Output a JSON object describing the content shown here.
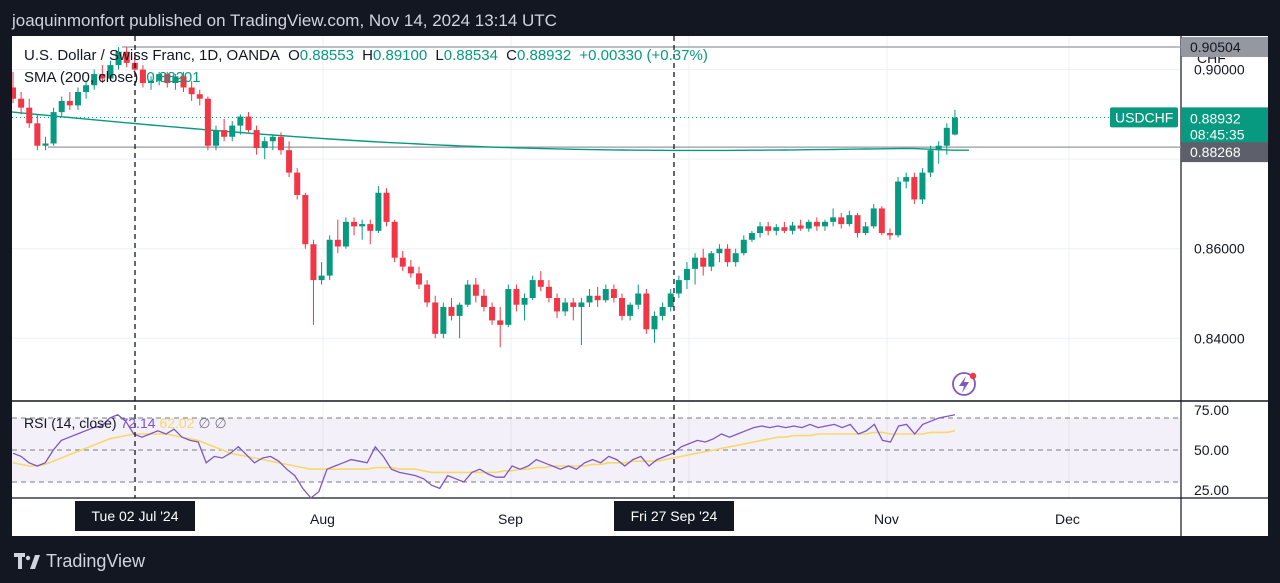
{
  "header": {
    "caption": "joaquinmonfort published on TradingView.com, Nov 14, 2024 13:14 UTC"
  },
  "legend": {
    "title": "U.S. Dollar / Swiss Franc, 1D, OANDA",
    "o_label": "O",
    "o_value": "0.88553",
    "h_label": "H",
    "h_value": "0.89100",
    "l_label": "L",
    "l_value": "0.88534",
    "c_label": "C",
    "c_value": "0.88932",
    "change": "+0.00330 (+0.37%)",
    "sma_label": "SMA (200, close)",
    "sma_value": "0.88201"
  },
  "rsi_legend": {
    "label": "RSI (14, close)",
    "value1": "72.14",
    "value2": "62.02",
    "symbols": "∅ ∅"
  },
  "currency": "CHF",
  "footer": {
    "brand": "TradingView"
  },
  "colors": {
    "up": "#089981",
    "down": "#f23645",
    "sma": "#089981",
    "rsi": "#7e57c2",
    "rsi_ma": "#f7d96a",
    "background": "#ffffff",
    "frame": "#131722"
  },
  "icons": [
    "lightning-icon",
    "tradingview-logo-icon"
  ],
  "chart_data": [
    {
      "type": "candlestick",
      "symbol": "USDCHF",
      "timeframe": "1D",
      "ylim": [
        0.826,
        0.9075
      ],
      "y_ticks": [
        "0.84000",
        "0.86000",
        "0.90000"
      ],
      "price_labels": [
        {
          "text": "0.90504",
          "value": 0.90504,
          "style": "gray"
        },
        {
          "text": "0.88932",
          "value": 0.88932,
          "style": "green",
          "tag": "USDCHF",
          "countdown": "08:45:35"
        },
        {
          "text": "0.88268",
          "value": 0.88268,
          "style": "dark"
        }
      ],
      "horizontal_lines": [
        0.90504,
        0.88268
      ],
      "x_labels": [
        "Aug",
        "Sep",
        "Nov",
        "Dec"
      ],
      "crosshair_labels": [
        "Tue 02 Jul '24",
        "Fri 27 Sep '24"
      ],
      "candles": [
        [
          0.896,
          0.8995,
          0.8925,
          0.8935
        ],
        [
          0.8935,
          0.895,
          0.89,
          0.8915
        ],
        [
          0.8915,
          0.8935,
          0.887,
          0.888
        ],
        [
          0.888,
          0.89,
          0.882,
          0.883
        ],
        [
          0.883,
          0.885,
          0.882,
          0.8835
        ],
        [
          0.8835,
          0.8915,
          0.883,
          0.8905
        ],
        [
          0.8905,
          0.894,
          0.8895,
          0.893
        ],
        [
          0.893,
          0.895,
          0.891,
          0.892
        ],
        [
          0.892,
          0.896,
          0.891,
          0.895
        ],
        [
          0.895,
          0.8975,
          0.8935,
          0.8965
        ],
        [
          0.8965,
          0.9,
          0.8955,
          0.899
        ],
        [
          0.899,
          0.901,
          0.897,
          0.898
        ],
        [
          0.898,
          0.902,
          0.8975,
          0.901
        ],
        [
          0.901,
          0.905,
          0.9,
          0.904
        ],
        [
          0.904,
          0.905,
          0.9005,
          0.9015
        ],
        [
          0.9015,
          0.903,
          0.899,
          0.9
        ],
        [
          0.9,
          0.901,
          0.896,
          0.897
        ],
        [
          0.897,
          0.8985,
          0.8955,
          0.8975
        ],
        [
          0.8975,
          0.8995,
          0.8965,
          0.899
        ],
        [
          0.899,
          0.8995,
          0.896,
          0.897
        ],
        [
          0.897,
          0.899,
          0.8955,
          0.8985
        ],
        [
          0.8985,
          0.8995,
          0.895,
          0.896
        ],
        [
          0.896,
          0.8975,
          0.893,
          0.8945
        ],
        [
          0.8945,
          0.8955,
          0.892,
          0.8935
        ],
        [
          0.8935,
          0.894,
          0.882,
          0.883
        ],
        [
          0.883,
          0.8875,
          0.882,
          0.8865
        ],
        [
          0.8865,
          0.889,
          0.884,
          0.885
        ],
        [
          0.885,
          0.8885,
          0.884,
          0.8875
        ],
        [
          0.8875,
          0.89,
          0.8855,
          0.8895
        ],
        [
          0.8895,
          0.8905,
          0.886,
          0.8865
        ],
        [
          0.8865,
          0.8875,
          0.881,
          0.8825
        ],
        [
          0.8825,
          0.885,
          0.88,
          0.884
        ],
        [
          0.884,
          0.8855,
          0.882,
          0.885
        ],
        [
          0.885,
          0.886,
          0.881,
          0.882
        ],
        [
          0.882,
          0.884,
          0.876,
          0.877
        ],
        [
          0.877,
          0.878,
          0.871,
          0.872
        ],
        [
          0.872,
          0.8725,
          0.86,
          0.861
        ],
        [
          0.861,
          0.862,
          0.843,
          0.853
        ],
        [
          0.853,
          0.857,
          0.852,
          0.854
        ],
        [
          0.854,
          0.863,
          0.853,
          0.862
        ],
        [
          0.862,
          0.8665,
          0.859,
          0.8605
        ],
        [
          0.8605,
          0.867,
          0.86,
          0.866
        ],
        [
          0.866,
          0.867,
          0.863,
          0.865
        ],
        [
          0.865,
          0.8665,
          0.862,
          0.8655
        ],
        [
          0.8655,
          0.8665,
          0.861,
          0.864
        ],
        [
          0.864,
          0.874,
          0.8635,
          0.8725
        ],
        [
          0.8725,
          0.8735,
          0.865,
          0.866
        ],
        [
          0.866,
          0.8665,
          0.857,
          0.858
        ],
        [
          0.858,
          0.8595,
          0.855,
          0.856
        ],
        [
          0.856,
          0.8575,
          0.8535,
          0.8545
        ],
        [
          0.8545,
          0.856,
          0.851,
          0.852
        ],
        [
          0.852,
          0.853,
          0.847,
          0.848
        ],
        [
          0.848,
          0.8495,
          0.84,
          0.841
        ],
        [
          0.841,
          0.848,
          0.84,
          0.847
        ],
        [
          0.847,
          0.849,
          0.844,
          0.845
        ],
        [
          0.845,
          0.848,
          0.84,
          0.8475
        ],
        [
          0.8475,
          0.853,
          0.847,
          0.852
        ],
        [
          0.852,
          0.8535,
          0.848,
          0.8495
        ],
        [
          0.8495,
          0.851,
          0.846,
          0.847
        ],
        [
          0.847,
          0.848,
          0.843,
          0.844
        ],
        [
          0.844,
          0.847,
          0.838,
          0.843
        ],
        [
          0.843,
          0.852,
          0.8425,
          0.851
        ],
        [
          0.851,
          0.852,
          0.846,
          0.8475
        ],
        [
          0.8475,
          0.85,
          0.844,
          0.849
        ],
        [
          0.849,
          0.854,
          0.8485,
          0.853
        ],
        [
          0.853,
          0.855,
          0.8505,
          0.8515
        ],
        [
          0.8515,
          0.853,
          0.848,
          0.849
        ],
        [
          0.849,
          0.85,
          0.8445,
          0.846
        ],
        [
          0.846,
          0.849,
          0.845,
          0.848
        ],
        [
          0.848,
          0.849,
          0.844,
          0.847
        ],
        [
          0.847,
          0.849,
          0.8385,
          0.848
        ],
        [
          0.848,
          0.851,
          0.847,
          0.8495
        ],
        [
          0.8495,
          0.8515,
          0.847,
          0.8485
        ],
        [
          0.8485,
          0.852,
          0.848,
          0.851
        ],
        [
          0.851,
          0.852,
          0.848,
          0.849
        ],
        [
          0.849,
          0.85,
          0.844,
          0.845
        ],
        [
          0.845,
          0.848,
          0.844,
          0.8475
        ],
        [
          0.8475,
          0.852,
          0.8465,
          0.85
        ],
        [
          0.85,
          0.851,
          0.841,
          0.842
        ],
        [
          0.842,
          0.846,
          0.839,
          0.845
        ],
        [
          0.845,
          0.848,
          0.844,
          0.847
        ],
        [
          0.847,
          0.851,
          0.846,
          0.85
        ],
        [
          0.85,
          0.854,
          0.849,
          0.853
        ],
        [
          0.853,
          0.857,
          0.851,
          0.8555
        ],
        [
          0.8555,
          0.859,
          0.852,
          0.858
        ],
        [
          0.858,
          0.86,
          0.854,
          0.856
        ],
        [
          0.856,
          0.8595,
          0.855,
          0.859
        ],
        [
          0.859,
          0.861,
          0.857,
          0.86
        ],
        [
          0.86,
          0.861,
          0.856,
          0.857
        ],
        [
          0.857,
          0.86,
          0.856,
          0.859
        ],
        [
          0.859,
          0.863,
          0.8585,
          0.862
        ],
        [
          0.862,
          0.864,
          0.8615,
          0.8635
        ],
        [
          0.8635,
          0.866,
          0.8625,
          0.865
        ],
        [
          0.865,
          0.866,
          0.863,
          0.864
        ],
        [
          0.864,
          0.8655,
          0.863,
          0.8648
        ],
        [
          0.8648,
          0.866,
          0.8635,
          0.864
        ],
        [
          0.864,
          0.866,
          0.8632,
          0.8652
        ],
        [
          0.8652,
          0.8665,
          0.864,
          0.8645
        ],
        [
          0.8645,
          0.8665,
          0.8638,
          0.866
        ],
        [
          0.866,
          0.867,
          0.864,
          0.865
        ],
        [
          0.865,
          0.8665,
          0.864,
          0.866
        ],
        [
          0.866,
          0.869,
          0.865,
          0.867
        ],
        [
          0.867,
          0.868,
          0.8645,
          0.8655
        ],
        [
          0.8655,
          0.8685,
          0.865,
          0.8675
        ],
        [
          0.8675,
          0.868,
          0.8625,
          0.8635
        ],
        [
          0.8635,
          0.866,
          0.863,
          0.865
        ],
        [
          0.865,
          0.87,
          0.8645,
          0.869
        ],
        [
          0.869,
          0.8695,
          0.863,
          0.8635
        ],
        [
          0.8635,
          0.8645,
          0.862,
          0.863
        ],
        [
          0.863,
          0.876,
          0.8625,
          0.875
        ],
        [
          0.875,
          0.877,
          0.8735,
          0.876
        ],
        [
          0.876,
          0.877,
          0.87,
          0.871
        ],
        [
          0.871,
          0.878,
          0.87,
          0.877
        ],
        [
          0.877,
          0.883,
          0.876,
          0.882
        ],
        [
          0.882,
          0.884,
          0.879,
          0.883
        ],
        [
          0.883,
          0.888,
          0.881,
          0.887
        ],
        [
          0.8855,
          0.891,
          0.8853,
          0.8893
        ]
      ],
      "sma": {
        "name": "SMA (200, close)",
        "start": 0.8905,
        "end": 0.882
      },
      "horizontal_lines_labels": []
    },
    {
      "type": "line",
      "name": "RSI (14, close)",
      "ylim": [
        20,
        80
      ],
      "y_ticks": [
        "75.00",
        "50.00",
        "25.00"
      ],
      "bands": [
        70,
        50,
        30
      ],
      "series": [
        {
          "name": "RSI",
          "values": [
            48,
            46,
            42,
            40,
            42,
            50,
            56,
            58,
            60,
            62,
            64,
            65,
            70,
            72,
            68,
            60,
            58,
            60,
            62,
            60,
            63,
            58,
            56,
            55,
            42,
            46,
            45,
            48,
            52,
            47,
            42,
            45,
            46,
            43,
            38,
            34,
            26,
            20,
            24,
            38,
            40,
            42,
            44,
            43,
            42,
            52,
            46,
            38,
            36,
            35,
            34,
            32,
            28,
            26,
            34,
            32,
            30,
            36,
            38,
            35,
            33,
            33,
            40,
            38,
            40,
            44,
            42,
            40,
            38,
            40,
            38,
            42,
            44,
            42,
            46,
            44,
            40,
            44,
            46,
            40,
            44,
            46,
            48,
            52,
            54,
            56,
            55,
            57,
            60,
            58,
            60,
            62,
            64,
            65,
            64,
            65,
            64,
            65,
            64,
            66,
            64,
            65,
            66,
            64,
            66,
            60,
            62,
            66,
            56,
            55,
            65,
            66,
            60,
            66,
            68,
            70,
            71,
            72
          ]
        },
        {
          "name": "MA",
          "values": [
            42,
            41,
            40,
            40,
            41,
            43,
            45,
            47,
            49,
            51,
            53,
            55,
            57,
            58,
            59,
            60,
            60,
            60,
            60,
            60,
            59,
            58,
            57,
            56,
            54,
            52,
            50,
            48,
            47,
            46,
            45,
            44,
            43,
            42,
            41,
            40,
            39,
            38,
            38,
            38,
            38,
            38,
            38,
            38,
            38,
            39,
            39,
            39,
            38,
            38,
            38,
            37,
            36,
            36,
            36,
            36,
            36,
            36,
            36,
            36,
            36,
            37,
            37,
            38,
            38,
            39,
            39,
            40,
            40,
            40,
            40,
            40,
            41,
            41,
            42,
            42,
            42,
            43,
            43,
            43,
            43,
            44,
            45,
            46,
            47,
            48,
            49,
            50,
            51,
            52,
            53,
            54,
            55,
            56,
            57,
            58,
            58,
            59,
            59,
            59,
            60,
            60,
            60,
            60,
            60,
            60,
            60,
            61,
            61,
            60,
            60,
            60,
            60,
            60,
            61,
            61,
            61,
            62
          ]
        }
      ]
    }
  ]
}
